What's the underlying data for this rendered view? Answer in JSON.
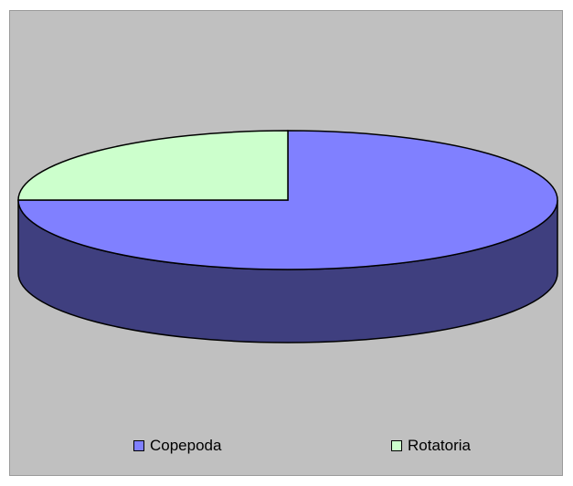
{
  "chart_data": {
    "type": "pie",
    "style": "3d",
    "categories": [
      "Copepoda",
      "Rotatoria"
    ],
    "values": [
      75,
      25
    ],
    "colors": {
      "Copepoda": "#8080ff",
      "Copepoda_side": "#3f3f7f",
      "Rotatoria": "#ccffcc",
      "background": "#c0c0c0"
    },
    "legend_position": "bottom"
  }
}
